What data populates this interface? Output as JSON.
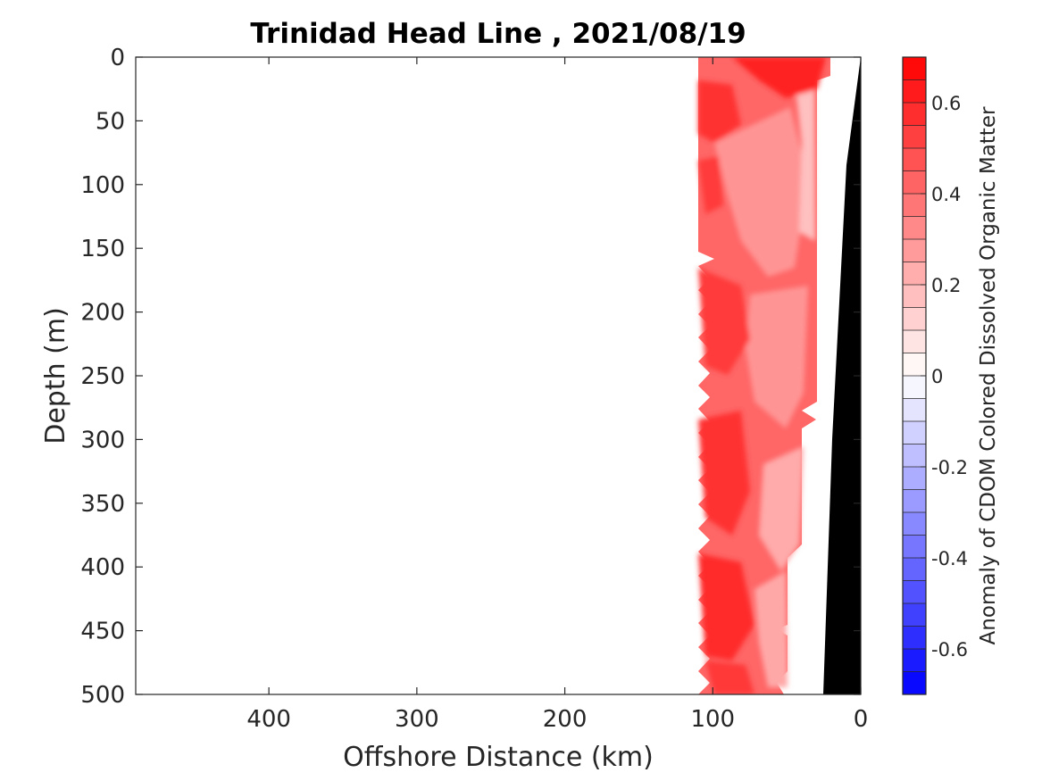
{
  "chart_data": {
    "type": "heatmap",
    "title": "Trinidad Head Line , 2021/08/19",
    "xlabel": "Offshore Distance (km)",
    "ylabel": "Depth (m)",
    "xlim": [
      490,
      0
    ],
    "ylim": [
      0,
      500
    ],
    "x_reversed": true,
    "y_reversed": true,
    "xticks": [
      400,
      300,
      200,
      100,
      0
    ],
    "yticks": [
      0,
      50,
      100,
      150,
      200,
      250,
      300,
      350,
      400,
      450,
      500
    ],
    "colorbar": {
      "label": "Anomaly of CDOM Colored Dissolved Organic Matter",
      "clim": [
        -0.7,
        0.7
      ],
      "levels": 28,
      "ticks": [
        0.6,
        0.4,
        0.2,
        0,
        -0.2,
        -0.4,
        -0.6
      ],
      "colormap": "blue-white-red",
      "low_color": "#0000ff",
      "mid_color": "#ffffff",
      "high_color": "#ff0000"
    },
    "field": {
      "x_range_km": [
        112,
        20
      ],
      "depth_range_m": [
        0,
        500
      ],
      "typical_anomaly": 0.45,
      "max_anomaly": 0.7,
      "min_anomaly": 0.2
    },
    "bathymetry": {
      "color": "#000000",
      "outline_km_m": [
        [
          0,
          0
        ],
        [
          10,
          90
        ],
        [
          20,
          300
        ],
        [
          26,
          500
        ]
      ]
    }
  }
}
